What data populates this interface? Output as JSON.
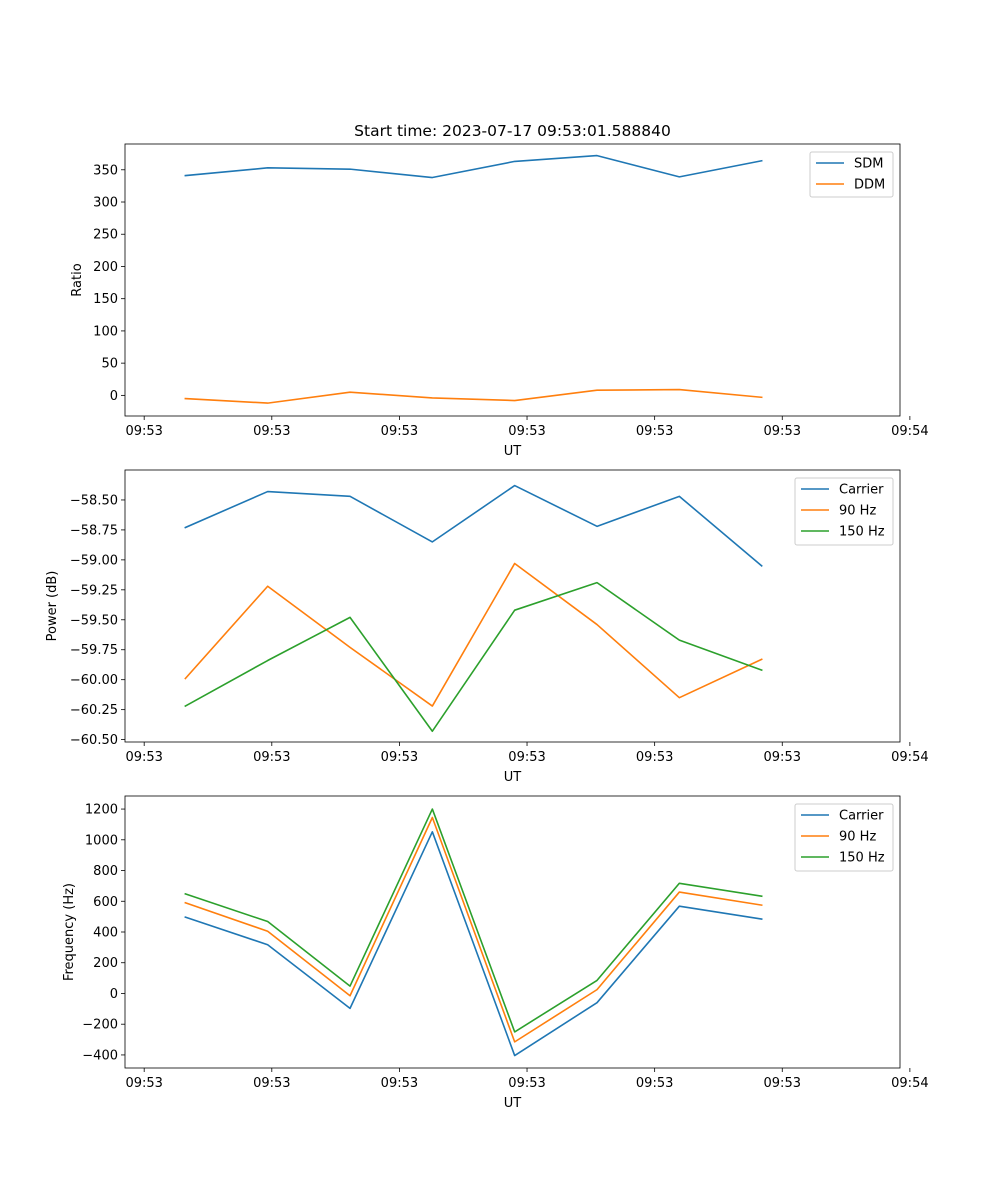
{
  "figure": {
    "title": "Start time: 2023-07-17 09:53:01.588840"
  },
  "chart_data": [
    {
      "type": "line",
      "title": "Start time: 2023-07-17 09:53:01.588840",
      "xlabel": "UT",
      "ylabel": "Ratio",
      "x": [
        1,
        2,
        3,
        4,
        5,
        6,
        7,
        8
      ],
      "xlim": [
        0.267,
        9.68
      ],
      "x_ticks": [
        0.5,
        2.05,
        3.6,
        5.15,
        6.7,
        8.25,
        9.8
      ],
      "x_tick_labels": [
        "09:53",
        "09:53",
        "09:53",
        "09:53",
        "09:53",
        "09:53",
        "09:54"
      ],
      "ylim": [
        -32,
        390
      ],
      "y_ticks": [
        0,
        50,
        100,
        150,
        200,
        250,
        300,
        350
      ],
      "y_tick_labels": [
        "0",
        "50",
        "100",
        "150",
        "200",
        "250",
        "300",
        "350"
      ],
      "legend_position": "top-right",
      "series": [
        {
          "name": "SDM",
          "color": "#1f77b4",
          "values": [
            341,
            353,
            351,
            338,
            363,
            372,
            339,
            364
          ]
        },
        {
          "name": "DDM",
          "color": "#ff7f0e",
          "values": [
            -5,
            -12,
            5,
            -4,
            -8,
            8,
            9,
            -3
          ]
        }
      ]
    },
    {
      "type": "line",
      "xlabel": "UT",
      "ylabel": "Power (dB)",
      "x": [
        1,
        2,
        3,
        4,
        5,
        6,
        7,
        8
      ],
      "xlim": [
        0.267,
        9.68
      ],
      "x_ticks": [
        0.5,
        2.05,
        3.6,
        5.15,
        6.7,
        8.25,
        9.8
      ],
      "x_tick_labels": [
        "09:53",
        "09:53",
        "09:53",
        "09:53",
        "09:53",
        "09:53",
        "09:54"
      ],
      "ylim": [
        -60.52,
        -58.25
      ],
      "y_ticks": [
        -60.5,
        -60.25,
        -60.0,
        -59.75,
        -59.5,
        -59.25,
        -59.0,
        -58.75,
        -58.5
      ],
      "y_tick_labels": [
        "−60.50",
        "−60.25",
        "−60.00",
        "−59.75",
        "−59.50",
        "−59.25",
        "−59.00",
        "−58.75",
        "−58.50"
      ],
      "legend_position": "top-right",
      "series": [
        {
          "name": "Carrier",
          "color": "#1f77b4",
          "values": [
            -58.73,
            -58.43,
            -58.47,
            -58.85,
            -58.38,
            -58.72,
            -58.47,
            -59.05
          ]
        },
        {
          "name": "90 Hz",
          "color": "#ff7f0e",
          "values": [
            -59.99,
            -59.22,
            -59.73,
            -60.22,
            -59.03,
            -59.54,
            -60.15,
            -59.83
          ]
        },
        {
          "name": "150 Hz",
          "color": "#2ca02c",
          "values": [
            -60.22,
            -59.84,
            -59.48,
            -60.43,
            -59.42,
            -59.19,
            -59.67,
            -59.92
          ]
        }
      ]
    },
    {
      "type": "line",
      "xlabel": "UT",
      "ylabel": "Frequency (Hz)",
      "x": [
        1,
        2,
        3,
        4,
        5,
        6,
        7,
        8
      ],
      "xlim": [
        0.267,
        9.68
      ],
      "x_ticks": [
        0.5,
        2.05,
        3.6,
        5.15,
        6.7,
        8.25,
        9.8
      ],
      "x_tick_labels": [
        "09:53",
        "09:53",
        "09:53",
        "09:53",
        "09:53",
        "09:53",
        "09:54"
      ],
      "ylim": [
        -485,
        1285
      ],
      "y_ticks": [
        -400,
        -200,
        0,
        200,
        400,
        600,
        800,
        1000,
        1200
      ],
      "y_tick_labels": [
        "−400",
        "−200",
        "0",
        "200",
        "400",
        "600",
        "800",
        "1000",
        "1200"
      ],
      "legend_position": "top-right",
      "series": [
        {
          "name": "Carrier",
          "color": "#1f77b4",
          "values": [
            497,
            317,
            -97,
            1052,
            -404,
            -60,
            568,
            484
          ]
        },
        {
          "name": "90 Hz",
          "color": "#ff7f0e",
          "values": [
            590,
            405,
            -15,
            1145,
            -315,
            25,
            660,
            575
          ]
        },
        {
          "name": "150 Hz",
          "color": "#2ca02c",
          "values": [
            648,
            468,
            48,
            1200,
            -250,
            85,
            717,
            633
          ]
        }
      ]
    }
  ]
}
